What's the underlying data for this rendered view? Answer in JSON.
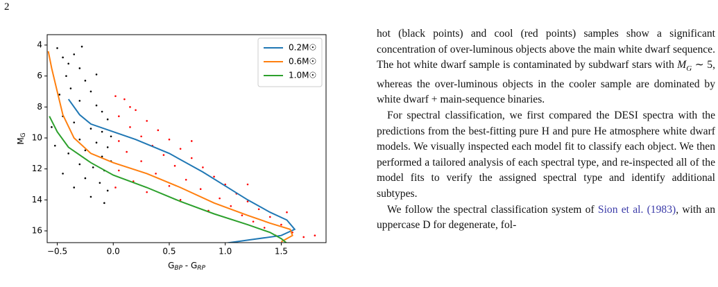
{
  "page_number": "2",
  "chart_data": {
    "type": "scatter",
    "xlabel_parts": [
      "G",
      "BP",
      " - G",
      "RP"
    ],
    "ylabel_parts": [
      "M",
      "G"
    ],
    "xlim": [
      -0.59,
      1.9
    ],
    "ylim": [
      16.76,
      3.33
    ],
    "xticks": [
      {
        "value": -0.5,
        "label": "−0.5"
      },
      {
        "value": 0,
        "label": "0.0"
      },
      {
        "value": 0.5,
        "label": "0.5"
      },
      {
        "value": 1,
        "label": "1.0"
      },
      {
        "value": 1.5,
        "label": "1.5"
      }
    ],
    "yticks": [
      4,
      6,
      8,
      10,
      12,
      14,
      16
    ],
    "legend": "upper right",
    "points": [
      {
        "color": "#000000",
        "x": [
          -0.5,
          -0.45,
          -0.4,
          -0.35,
          -0.3,
          -0.42,
          -0.25,
          -0.38,
          -0.2,
          -0.48,
          -0.3,
          -0.15,
          -0.1,
          -0.45,
          -0.05,
          -0.35,
          -0.2,
          -0.1,
          -0.02,
          -0.3,
          -0.15,
          -0.05,
          -0.25,
          -0.4,
          -0.1,
          -0.02,
          -0.3,
          -0.18,
          -0.08,
          -0.45,
          -0.25,
          -0.12,
          -0.35,
          -0.05,
          -0.2,
          -0.08,
          -0.52,
          -0.55,
          -0.28,
          -0.15
        ],
        "y": [
          4.2,
          4.8,
          5.2,
          4.6,
          5.5,
          6.0,
          6.3,
          6.8,
          7.0,
          7.2,
          7.6,
          7.9,
          8.3,
          8.6,
          8.8,
          9.0,
          9.4,
          9.6,
          9.9,
          10.1,
          10.3,
          10.6,
          10.8,
          11.0,
          11.2,
          11.5,
          11.7,
          11.9,
          12.1,
          12.3,
          12.6,
          12.9,
          13.2,
          13.4,
          13.8,
          14.2,
          10.5,
          9.3,
          4.1,
          5.9
        ]
      },
      {
        "color": "#ff0000",
        "x": [
          0.02,
          0.1,
          0.2,
          0.05,
          0.3,
          0.15,
          0.4,
          0.25,
          0.05,
          0.5,
          0.35,
          0.6,
          0.12,
          0.45,
          0.7,
          0.25,
          0.55,
          0.8,
          0.05,
          0.38,
          0.9,
          0.65,
          0.18,
          1.0,
          0.5,
          0.78,
          1.1,
          0.3,
          0.95,
          1.2,
          0.6,
          1.05,
          1.3,
          0.85,
          1.15,
          1.4,
          1.25,
          1.5,
          1.35,
          1.6,
          1.45,
          1.7,
          1.8,
          0.02,
          0.15,
          0.7,
          1.2,
          1.55
        ],
        "y": [
          7.3,
          7.5,
          8.2,
          8.6,
          8.9,
          9.3,
          9.5,
          9.9,
          10.2,
          10.1,
          10.5,
          10.7,
          10.9,
          11.1,
          11.3,
          11.5,
          11.8,
          11.9,
          12.1,
          12.3,
          12.5,
          12.7,
          12.8,
          13.0,
          13.1,
          13.3,
          13.6,
          13.5,
          13.9,
          14.1,
          14.0,
          14.4,
          14.6,
          14.7,
          15.0,
          15.1,
          15.4,
          15.6,
          15.8,
          16.1,
          16.3,
          16.4,
          16.3,
          13.2,
          8.0,
          10.2,
          13.0,
          14.8
        ]
      }
    ],
    "series": [
      {
        "name": "0.2M☉",
        "color": "#1f77b4",
        "x": [
          -0.4,
          -0.3,
          -0.2,
          0,
          0.2,
          0.5,
          0.8,
          1.0,
          1.2,
          1.4,
          1.55,
          1.62,
          1.5,
          1.2,
          1.0
        ],
        "y": [
          7.5,
          8.5,
          9.1,
          9.6,
          10.1,
          11.0,
          12.2,
          13.1,
          14.0,
          14.8,
          15.3,
          15.9,
          16.3,
          16.6,
          16.8
        ]
      },
      {
        "name": "0.6M☉",
        "color": "#ff7f0e",
        "x": [
          -0.58,
          -0.55,
          -0.5,
          -0.45,
          -0.35,
          -0.2,
          0,
          0.3,
          0.6,
          0.9,
          1.2,
          1.4,
          1.58,
          1.6,
          1.5
        ],
        "y": [
          4.4,
          5.5,
          7.0,
          8.5,
          10.0,
          11.0,
          11.6,
          12.3,
          13.2,
          14.2,
          15.0,
          15.5,
          15.9,
          16.3,
          16.7
        ]
      },
      {
        "name": "1.0M☉",
        "color": "#2ca02c",
        "x": [
          -0.57,
          -0.5,
          -0.4,
          -0.2,
          0,
          0.3,
          0.6,
          0.9,
          1.2,
          1.4,
          1.5,
          1.55
        ],
        "y": [
          8.6,
          9.6,
          10.6,
          11.6,
          12.4,
          13.2,
          14.1,
          14.9,
          15.6,
          16.1,
          16.5,
          16.8
        ]
      }
    ]
  },
  "text": {
    "p1": {
      "before": "hot (black points) and cool (red points) samples show a significant concentration of over-luminous objects above the main white dwarf sequence. The hot white dwarf sample is contaminated by subdwarf stars with ",
      "math": "M",
      "sub": "G",
      "after": " ∼ 5, whereas the over-luminous objects in the cooler sample are dominated by white dwarf + main-sequence binaries."
    },
    "p2": "For spectral classification, we first compared the DESI spectra with the predictions from the best-fitting pure H and pure He atmosphere white dwarf models. We visually inspected each model fit to classify each object. We then performed a tailored analysis of each spectral type, and re-inspected all of the model fits to verify the assigned spectral type and identify additional subtypes.",
    "p3": {
      "before": "We follow the spectral classification system of ",
      "link": "Sion et al. (1983)",
      "after": ", with an uppercase D for degenerate, fol-"
    }
  }
}
